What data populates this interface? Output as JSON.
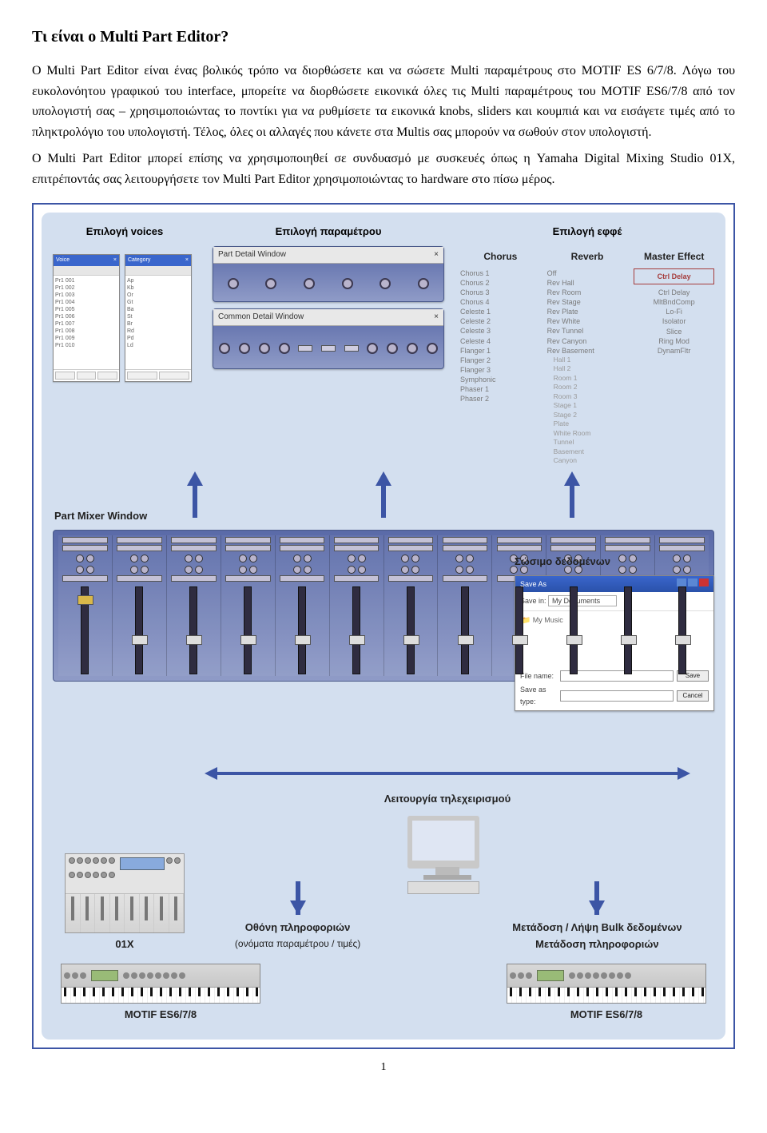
{
  "heading": "Τι είναι ο Multi Part Editor?",
  "para1": "Ο Multi Part Editor είναι ένας βολικός τρόπο να διορθώσετε και να σώσετε Multi παραμέτρους στο MOTIF ES 6/7/8. Λόγω του ευκολονόητου γραφικού του interface, μπορείτε να διορθώσετε εικονικά όλες τις Multi παραμέτρους του MOTIF ES6/7/8 από τον υπολογιστή σας – χρησιμοποιώντας το ποντίκι για να ρυθμίσετε τα εικονικά knobs, sliders και κουμπιά και να εισάγετε τιμές από το πληκτρολόγιο του υπολογιστή. Τέλος, όλες οι αλλαγές που κάνετε στα Multis σας μπορούν να σωθούν στον υπολογιστή.",
  "para2": "Ο Multi Part Editor μπορεί επίσης να χρησιμοποιηθεί σε συνδυασμό με συσκευές όπως η Yamaha Digital Mixing Studio 01X, επιτρέποντάς σας λειτουργήσετε τον Multi Part Editor χρησιμοποιώντας το hardware στο πίσω μέρος.",
  "diagram": {
    "col_voices_title": "Επιλογή voices",
    "col_param_title": "Επιλογή παραμέτρου",
    "col_effect_title": "Επιλογή εφφέ",
    "part_detail_label": "Part Detail Window",
    "common_detail_label": "Common Detail Window",
    "mixer_label": "Part Mixer Window",
    "save_label": "Σώσιμο δεδομένων",
    "chorus_header": "Chorus",
    "reverb_header": "Reverb",
    "master_header": "Master Effect",
    "master_box": "Ctrl Delay",
    "chorus_items": [
      "Chorus 1",
      "Chorus 2",
      "Chorus 3",
      "Chorus 4",
      "Celeste 1",
      "Celeste 2",
      "Celeste 3",
      "Celeste 4",
      "Flanger 1",
      "Flanger 2",
      "Flanger 3",
      "Symphonic",
      "Phaser 1",
      "Phaser 2"
    ],
    "reverb_items": [
      "Off",
      "Rev Hall",
      "Rev Room",
      "Rev Stage",
      "Rev Plate",
      "Rev White",
      "Rev Tunnel",
      "Rev Canyon",
      "Rev Basement"
    ],
    "reverb_sub": [
      "Hall 1",
      "Hall 2",
      "Room 1",
      "Room 2",
      "Room 3",
      "Stage 1",
      "Stage 2",
      "Plate",
      "White Room",
      "Tunnel",
      "Basement",
      "Canyon"
    ],
    "master_items": [
      "Ctrl Delay",
      "MltBndComp",
      "Lo-Fi",
      "Isolator",
      "Slice",
      "Ring Mod",
      "DynamFltr"
    ],
    "save_title": "Save As",
    "save_in": "Save in:",
    "save_folder": "My Documents",
    "save_file_lbl": "File name:",
    "save_type_lbl": "Save as type:",
    "save_btn": "Save",
    "cancel_btn": "Cancel",
    "remote_label": "Λειτουργία τηλεχειρισμού",
    "info_label": "Οθόνη πληροφοριών",
    "info_sub": "(ονόματα παραμέτρου / τιμές)",
    "bulk_label": "Μετάδοση / Λήψη Bulk δεδομένων",
    "bulk_sub": "Μετάδοση πληροφοριών",
    "dev_01x": "01X",
    "dev_motif_l": "MOTIF ES6/7/8",
    "dev_motif_r": "MOTIF ES6/7/8"
  },
  "pagenum": "1"
}
